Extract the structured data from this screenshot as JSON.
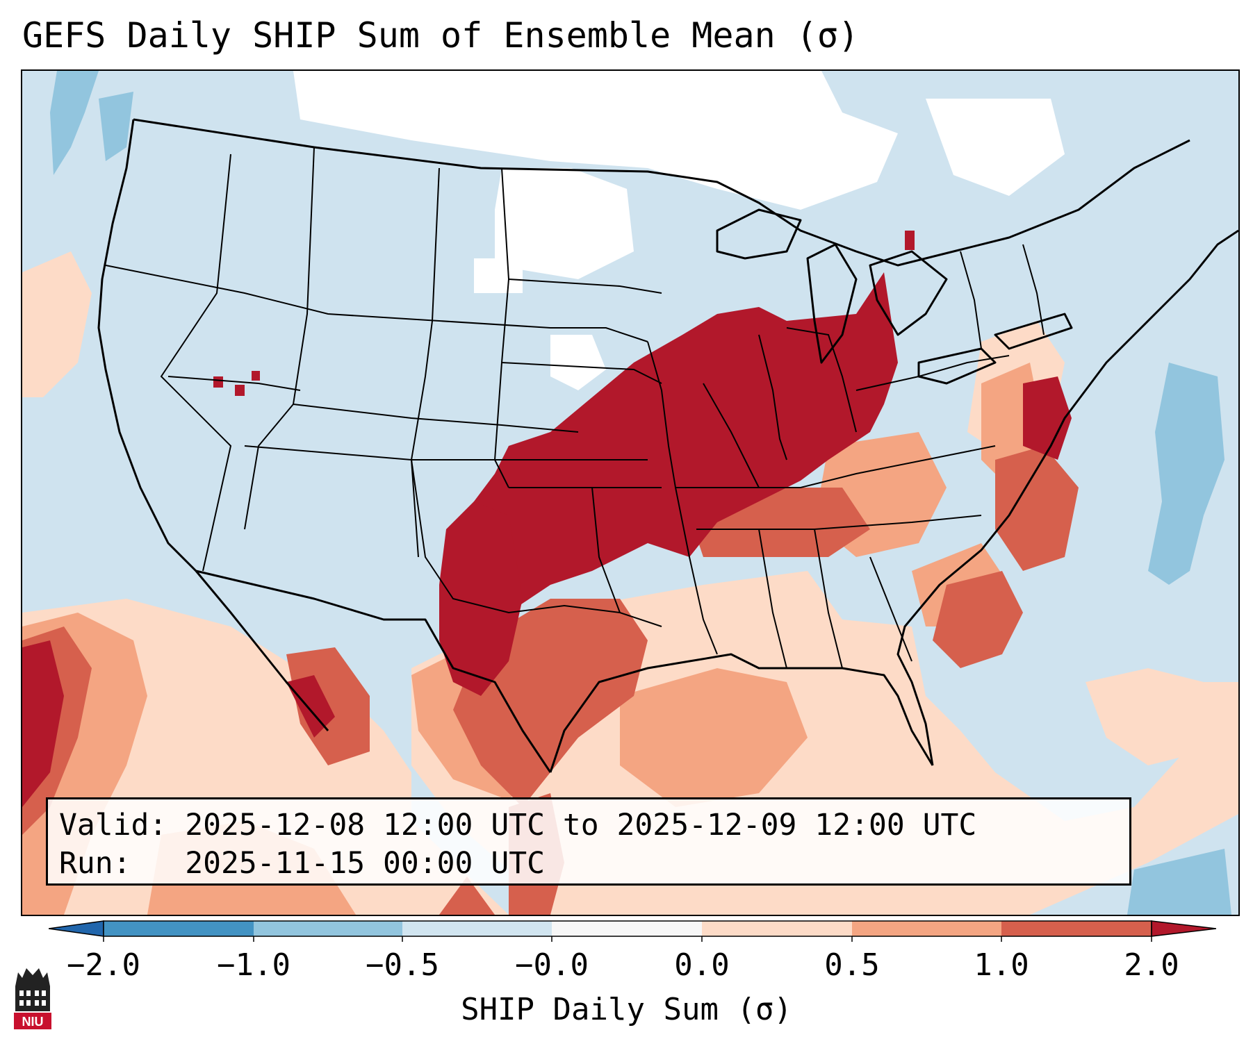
{
  "title": "GEFS Daily SHIP Sum of Ensemble Mean (σ)",
  "info_box": {
    "valid_line": "Valid: 2025-12-08 12:00 UTC to 2025-12-09 12:00 UTC",
    "run_line": "Run:   2025-11-15 00:00 UTC"
  },
  "colorbar": {
    "label": "SHIP Daily Sum (σ)",
    "ticks": [
      "−2.0",
      "−1.0",
      "−0.5",
      "−0.0",
      "0.0",
      "0.5",
      "1.0",
      "2.0"
    ],
    "bins": [
      {
        "range": "< -2.0",
        "color": "#2166ac"
      },
      {
        "range": "-2.0 to -1.0",
        "color": "#4393c3"
      },
      {
        "range": "-1.0 to -0.5",
        "color": "#92c5de"
      },
      {
        "range": "-0.5 to -0.0",
        "color": "#d1e5f0"
      },
      {
        "range": "-0.0 to 0.0",
        "color": "#f7f7f7"
      },
      {
        "range": "0.0 to 0.5",
        "color": "#fddbc7"
      },
      {
        "range": "0.5 to 1.0",
        "color": "#f4a582"
      },
      {
        "range": "1.0 to 2.0",
        "color": "#d6604d"
      },
      {
        "range": "> 2.0",
        "color": "#b2182b"
      }
    ]
  },
  "map": {
    "region": "Contiguous United States",
    "high_values_region": "Southern Plains, Mississippi Valley, Midwest, Mid-Atlantic (> 2.0σ)",
    "low_values_region": "Northern Plains, Canada, Atlantic (near 0 to -1.0σ)"
  },
  "logo": {
    "text": "NIU",
    "name": "Northern Illinois University"
  }
}
